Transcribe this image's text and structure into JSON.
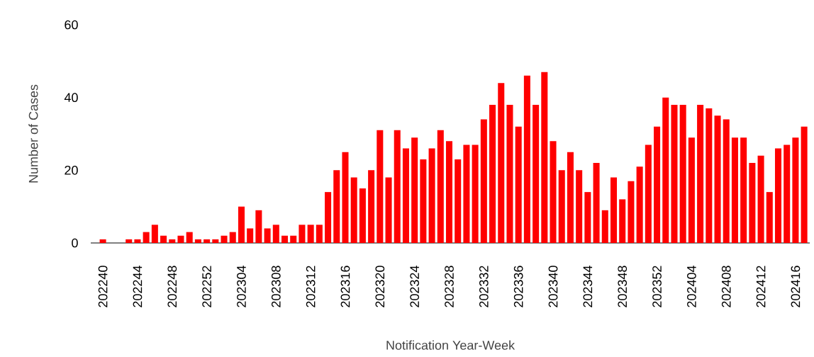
{
  "chart_data": {
    "type": "bar",
    "xlabel": "Notification Year-Week",
    "ylabel": "Number of Cases",
    "categories": [
      "202240",
      null,
      null,
      null,
      "202244",
      null,
      null,
      null,
      "202248",
      null,
      null,
      null,
      "202252",
      null,
      null,
      null,
      "202304",
      null,
      null,
      null,
      "202308",
      null,
      null,
      null,
      "202312",
      null,
      null,
      null,
      "202316",
      null,
      null,
      null,
      "202320",
      null,
      null,
      null,
      "202324",
      null,
      null,
      null,
      "202328",
      null,
      null,
      null,
      "202332",
      null,
      null,
      null,
      "202336",
      null,
      null,
      null,
      "202340",
      null,
      null,
      null,
      "202344",
      null,
      null,
      null,
      "202348",
      null,
      null,
      null,
      "202352",
      null,
      null,
      null,
      "202404",
      null,
      null,
      null,
      "202408",
      null,
      null,
      null,
      "202412",
      null,
      null,
      null,
      "202416",
      null
    ],
    "values": [
      1,
      0,
      0,
      1,
      1,
      3,
      5,
      2,
      1,
      2,
      3,
      1,
      1,
      1,
      2,
      3,
      10,
      4,
      9,
      4,
      5,
      2,
      2,
      5,
      5,
      5,
      14,
      20,
      25,
      18,
      15,
      20,
      31,
      18,
      31,
      26,
      29,
      23,
      26,
      31,
      28,
      23,
      27,
      27,
      34,
      38,
      44,
      38,
      32,
      46,
      38,
      47,
      28,
      20,
      25,
      20,
      14,
      22,
      9,
      18,
      12,
      17,
      21,
      27,
      32,
      40,
      38,
      38,
      29,
      38,
      37,
      35,
      34,
      29,
      29,
      22,
      24,
      14,
      26,
      27,
      29,
      32
    ],
    "color": "#ff0000",
    "ylim": [
      0,
      60
    ],
    "yticks": [
      0,
      20,
      40,
      60
    ]
  }
}
